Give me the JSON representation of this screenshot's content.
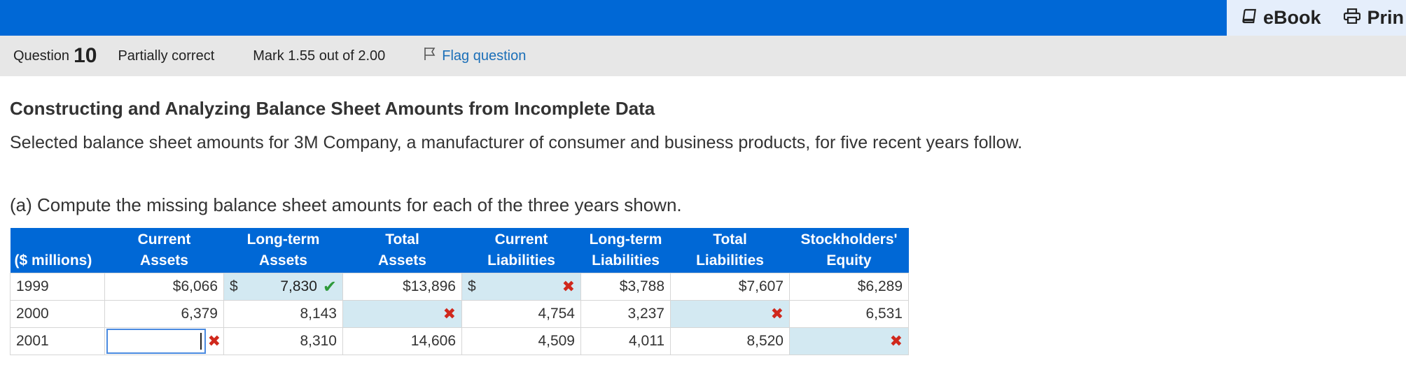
{
  "topbar": {
    "ebook_label": "eBook",
    "print_label": "Prin",
    "brand_color": "#0068d6"
  },
  "question": {
    "label": "Question",
    "number": "10",
    "status": "Partially correct",
    "mark": "Mark 1.55 out of 2.00",
    "flag_label": "Flag question"
  },
  "content": {
    "title": "Constructing and Analyzing Balance Sheet Amounts from Incomplete Data",
    "intro": "Selected balance sheet amounts for 3M Company, a manufacturer of consumer and business products, for five recent years follow.",
    "prompt": "(a) Compute the missing balance sheet amounts for each of the three years shown."
  },
  "table": {
    "headers": {
      "row": "($ millions)",
      "c1a": "Current",
      "c1b": "Assets",
      "c2a": "Long-term",
      "c2b": "Assets",
      "c3a": "Total",
      "c3b": "Assets",
      "c4a": "Current",
      "c4b": "Liabilities",
      "c5a": "Long-term",
      "c5b": "Liabilities",
      "c6a": "Total",
      "c6b": "Liabilities",
      "c7a": "Stockholders'",
      "c7b": "Equity"
    },
    "rows": [
      {
        "year": "1999",
        "current_assets": "$6,066",
        "lt_assets_dollar": "$",
        "lt_assets_input": "7,830",
        "total_assets": "$13,896",
        "cur_liab_dollar": "$",
        "cur_liab_input": "",
        "lt_liab": "$3,788",
        "total_liab": "$7,607",
        "equity": "$6,289"
      },
      {
        "year": "2000",
        "current_assets": "6,379",
        "lt_assets": "8,143",
        "total_assets_input": "",
        "cur_liab": "4,754",
        "lt_liab": "3,237",
        "total_liab_input": "",
        "equity": "6,531"
      },
      {
        "year": "2001",
        "current_assets_input": "",
        "lt_assets": "8,310",
        "total_assets": "14,606",
        "cur_liab": "4,509",
        "lt_liab": "4,011",
        "total_liab": "8,520",
        "equity_input": ""
      }
    ]
  }
}
